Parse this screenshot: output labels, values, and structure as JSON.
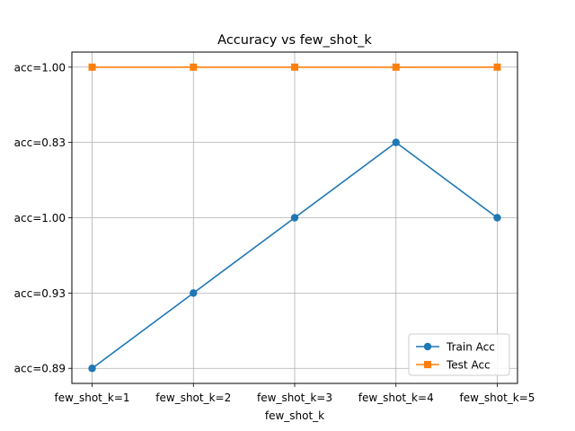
{
  "chart_data": {
    "type": "line",
    "title": "Accuracy vs few_shot_k",
    "xlabel": "few_shot_k",
    "ylabel": "",
    "categories": [
      "few_shot_k=1",
      "few_shot_k=2",
      "few_shot_k=3",
      "few_shot_k=4",
      "few_shot_k=5"
    ],
    "y_categories": [
      "acc=0.89",
      "acc=0.93",
      "acc=1.00",
      "acc=0.83",
      "acc=1.00"
    ],
    "y_category_note": "y axis is categorical; values are indices into y_categories (bottom to top)",
    "series": [
      {
        "name": "Train Acc",
        "values": [
          0,
          1,
          2,
          3,
          2
        ],
        "color": "#1f77b4",
        "marker": "circle"
      },
      {
        "name": "Test Acc",
        "values": [
          4,
          4,
          4,
          4,
          4
        ],
        "color": "#ff7f0e",
        "marker": "square"
      }
    ],
    "ylim": [
      -0.2,
      4.2
    ],
    "grid": true,
    "legend_position": "lower-right"
  }
}
